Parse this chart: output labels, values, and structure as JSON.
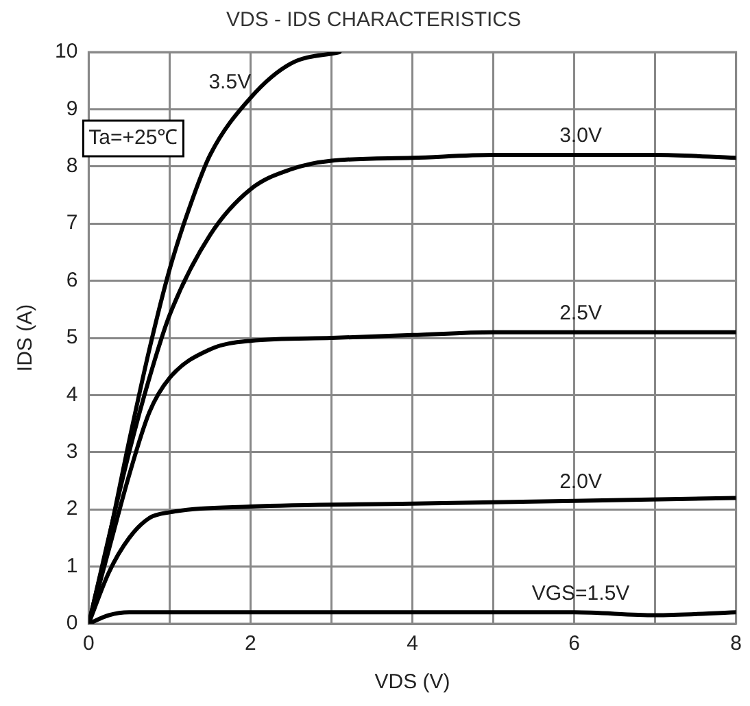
{
  "chart_data": {
    "type": "line",
    "title": "VDS - IDS CHARACTERISTICS",
    "xlabel": "VDS (V)",
    "ylabel": "IDS (A)",
    "annotations": [
      "Ta=+25℃"
    ],
    "xlim": [
      0,
      8
    ],
    "xticks": [
      0,
      {
        "value": 1,
        "label": null
      },
      2,
      {
        "value": 3,
        "label": null
      },
      4,
      {
        "value": 5,
        "label": null
      },
      6,
      {
        "value": 7,
        "label": null
      },
      8
    ],
    "ylim": [
      0,
      10
    ],
    "yticks": [
      0,
      1,
      2,
      3,
      4,
      5,
      6,
      7,
      8,
      9,
      10
    ],
    "grid": true,
    "legend": false,
    "marker": "none",
    "line_style": "solid",
    "series": [
      {
        "name": "3.5V",
        "color": "#000000",
        "x": [
          0,
          0.25,
          0.5,
          0.75,
          1,
          1.25,
          1.5,
          2,
          2.5,
          3.1
        ],
        "values": [
          0,
          1.5,
          3.2,
          4.8,
          6.2,
          7.3,
          8.2,
          9.2,
          9.8,
          10
        ]
      },
      {
        "name": "3.0V",
        "color": "#000000",
        "x": [
          0,
          0.5,
          0.75,
          1,
          1.5,
          2,
          2.5,
          3,
          4,
          5,
          6,
          7,
          8
        ],
        "values": [
          0,
          3,
          4.3,
          5.4,
          6.8,
          7.6,
          7.95,
          8.1,
          8.15,
          8.2,
          8.2,
          8.2,
          8.15
        ]
      },
      {
        "name": "2.5V",
        "color": "#000000",
        "x": [
          0,
          0.25,
          0.5,
          0.75,
          1,
          1.5,
          2,
          3,
          4,
          5,
          6,
          8
        ],
        "values": [
          0,
          1.3,
          2.6,
          3.7,
          4.3,
          4.8,
          4.95,
          5,
          5.05,
          5.1,
          5.1,
          5.1
        ]
      },
      {
        "name": "2.0V",
        "color": "#000000",
        "x": [
          0,
          0.25,
          0.5,
          0.75,
          1,
          2,
          4,
          6,
          8
        ],
        "values": [
          0,
          0.9,
          1.5,
          1.85,
          1.95,
          2.05,
          2.1,
          2.15,
          2.2
        ]
      },
      {
        "name": "VGS=1.5V",
        "color": "#000000",
        "x": [
          0,
          0.25,
          0.5,
          2,
          4,
          6,
          7,
          8
        ],
        "values": [
          0,
          0.15,
          0.2,
          0.2,
          0.2,
          0.2,
          0.15,
          0.2
        ]
      }
    ]
  }
}
